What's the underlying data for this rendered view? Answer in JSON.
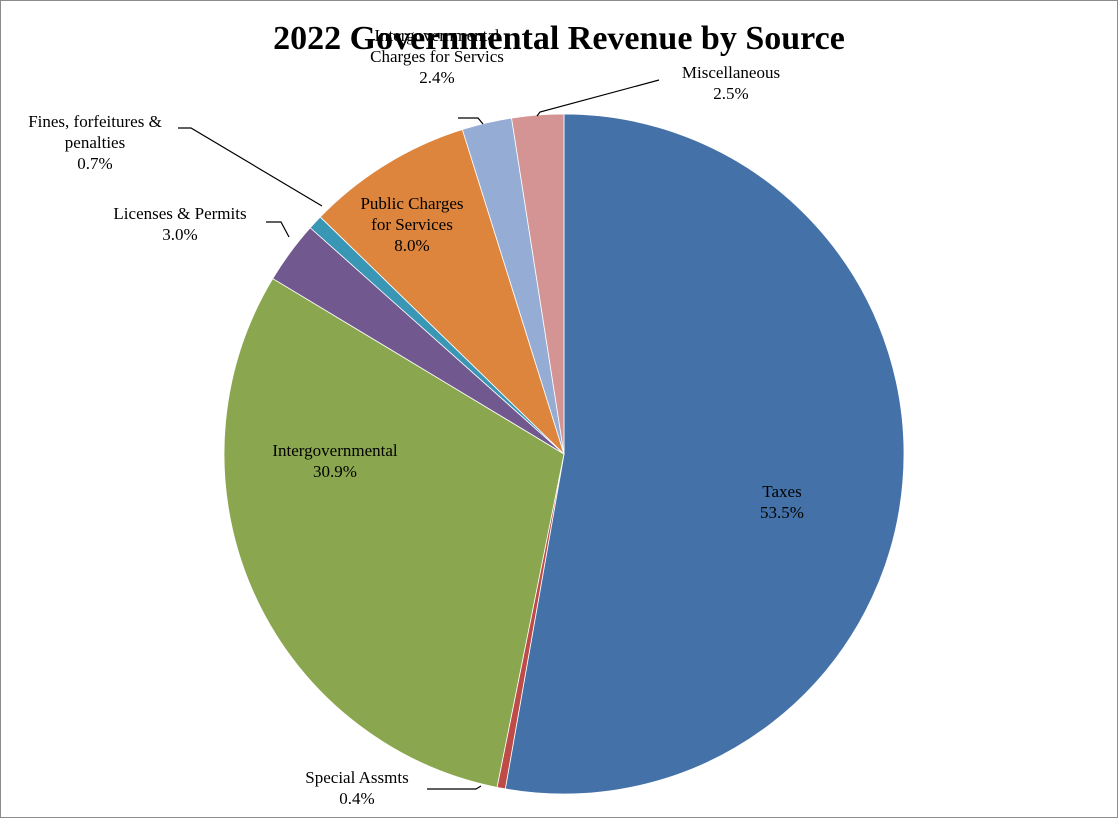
{
  "chart_data": {
    "type": "pie",
    "title": "2022 Governmental Revenue by Source",
    "start_angle_deg": 0,
    "direction": "clockwise",
    "legend": "none",
    "slices": [
      {
        "label": [
          "Taxes"
        ],
        "percent_label": "53.5%",
        "value": 53.5,
        "color": "#4472A8"
      },
      {
        "label": [
          "Special Assmts"
        ],
        "percent_label": "0.4%",
        "value": 0.4,
        "color": "#BE4B48"
      },
      {
        "label": [
          "Intergovernmental"
        ],
        "percent_label": "30.9%",
        "value": 30.9,
        "color": "#8AA64E"
      },
      {
        "label": [
          "Licenses  & Permits"
        ],
        "percent_label": "3.0%",
        "value": 3.0,
        "color": "#71588F"
      },
      {
        "label": [
          "Fines, forfeitures &",
          "penalties"
        ],
        "percent_label": "0.7%",
        "value": 0.7,
        "color": "#3A96B5"
      },
      {
        "label": [
          "Public Charges",
          "for Services"
        ],
        "percent_label": "8.0%",
        "value": 8.0,
        "color": "#DD843D"
      },
      {
        "label": [
          "Intergovernmental",
          "Charges for Servics"
        ],
        "percent_label": "2.4%",
        "value": 2.4,
        "color": "#95ACD5"
      },
      {
        "label": [
          "Miscellaneous"
        ],
        "percent_label": "2.5%",
        "value": 2.5,
        "color": "#D39493"
      }
    ]
  }
}
